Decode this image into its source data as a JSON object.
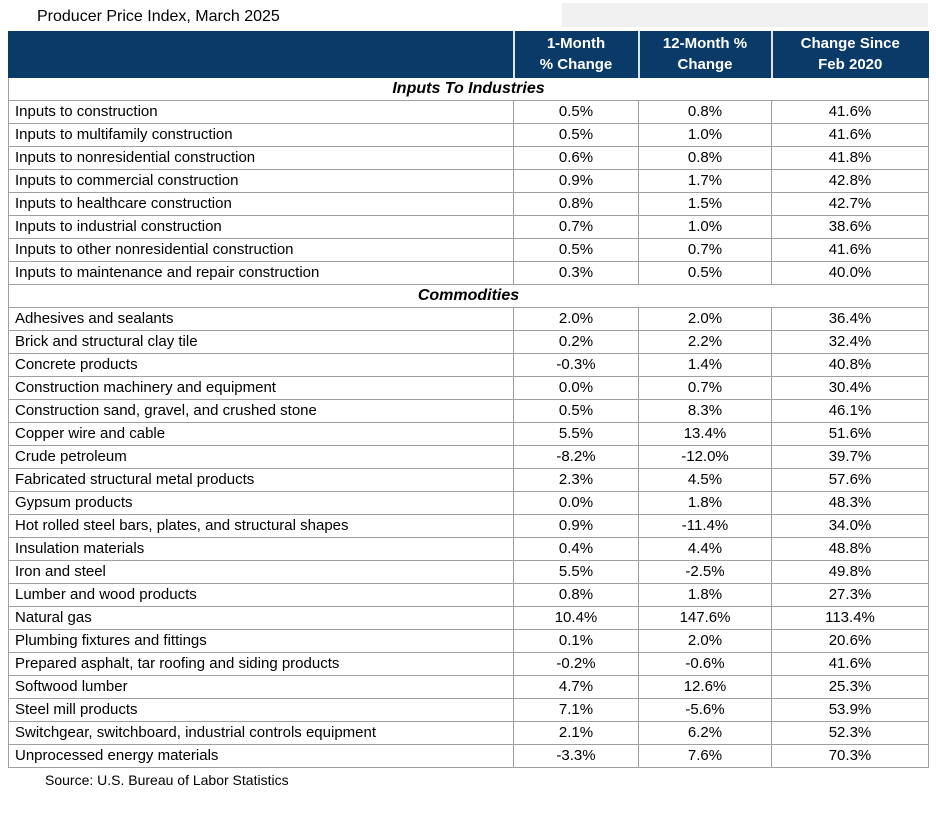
{
  "colors": {
    "header_bg": "#0a3a68",
    "header_text": "#ffffff",
    "grid_line": "#a0a0a0",
    "body_bg": "#ffffff"
  },
  "chart_data": {
    "type": "table",
    "title": "Producer Price Index, March 2025",
    "source": "Source: U.S. Bureau of Labor Statistics",
    "columns": [
      "",
      "1-Month\n% Change",
      "12-Month %\nChange",
      "Change Since\nFeb 2020"
    ],
    "sections": [
      {
        "label": "Inputs To Industries",
        "rows": [
          {
            "label": "Inputs to construction",
            "values": [
              "0.5%",
              "0.8%",
              "41.6%"
            ]
          },
          {
            "label": "Inputs to multifamily construction",
            "values": [
              "0.5%",
              "1.0%",
              "41.6%"
            ]
          },
          {
            "label": "Inputs to nonresidential construction",
            "values": [
              "0.6%",
              "0.8%",
              "41.8%"
            ]
          },
          {
            "label": "Inputs to commercial construction",
            "values": [
              "0.9%",
              "1.7%",
              "42.8%"
            ]
          },
          {
            "label": "Inputs to healthcare construction",
            "values": [
              "0.8%",
              "1.5%",
              "42.7%"
            ]
          },
          {
            "label": "Inputs to industrial construction",
            "values": [
              "0.7%",
              "1.0%",
              "38.6%"
            ]
          },
          {
            "label": "Inputs to other nonresidential construction",
            "values": [
              "0.5%",
              "0.7%",
              "41.6%"
            ]
          },
          {
            "label": "Inputs to maintenance and repair construction",
            "values": [
              "0.3%",
              "0.5%",
              "40.0%"
            ]
          }
        ]
      },
      {
        "label": "Commodities",
        "rows": [
          {
            "label": "Adhesives and sealants",
            "values": [
              "2.0%",
              "2.0%",
              "36.4%"
            ]
          },
          {
            "label": "Brick and structural clay tile",
            "values": [
              "0.2%",
              "2.2%",
              "32.4%"
            ]
          },
          {
            "label": "Concrete products",
            "values": [
              "-0.3%",
              "1.4%",
              "40.8%"
            ]
          },
          {
            "label": "Construction machinery and equipment",
            "values": [
              "0.0%",
              "0.7%",
              "30.4%"
            ]
          },
          {
            "label": "Construction sand, gravel, and crushed stone",
            "values": [
              "0.5%",
              "8.3%",
              "46.1%"
            ]
          },
          {
            "label": "Copper wire and cable",
            "values": [
              "5.5%",
              "13.4%",
              "51.6%"
            ]
          },
          {
            "label": "Crude petroleum",
            "values": [
              "-8.2%",
              "-12.0%",
              "39.7%"
            ]
          },
          {
            "label": "Fabricated structural metal products",
            "values": [
              "2.3%",
              "4.5%",
              "57.6%"
            ]
          },
          {
            "label": "Gypsum products",
            "values": [
              "0.0%",
              "1.8%",
              "48.3%"
            ]
          },
          {
            "label": "Hot rolled steel bars, plates, and structural shapes",
            "values": [
              "0.9%",
              "-11.4%",
              "34.0%"
            ]
          },
          {
            "label": "Insulation materials",
            "values": [
              "0.4%",
              "4.4%",
              "48.8%"
            ]
          },
          {
            "label": "Iron and steel",
            "values": [
              "5.5%",
              "-2.5%",
              "49.8%"
            ]
          },
          {
            "label": "Lumber and wood products",
            "values": [
              "0.8%",
              "1.8%",
              "27.3%"
            ]
          },
          {
            "label": "Natural gas",
            "values": [
              "10.4%",
              "147.6%",
              "113.4%"
            ]
          },
          {
            "label": "Plumbing fixtures and fittings",
            "values": [
              "0.1%",
              "2.0%",
              "20.6%"
            ]
          },
          {
            "label": "Prepared asphalt, tar roofing and siding products",
            "values": [
              "-0.2%",
              "-0.6%",
              "41.6%"
            ]
          },
          {
            "label": "Softwood lumber",
            "values": [
              "4.7%",
              "12.6%",
              "25.3%"
            ]
          },
          {
            "label": "Steel mill products",
            "values": [
              "7.1%",
              "-5.6%",
              "53.9%"
            ]
          },
          {
            "label": "Switchgear, switchboard, industrial controls equipment",
            "values": [
              "2.1%",
              "6.2%",
              "52.3%"
            ]
          },
          {
            "label": "Unprocessed energy materials",
            "values": [
              "-3.3%",
              "7.6%",
              "70.3%"
            ]
          }
        ]
      }
    ]
  }
}
